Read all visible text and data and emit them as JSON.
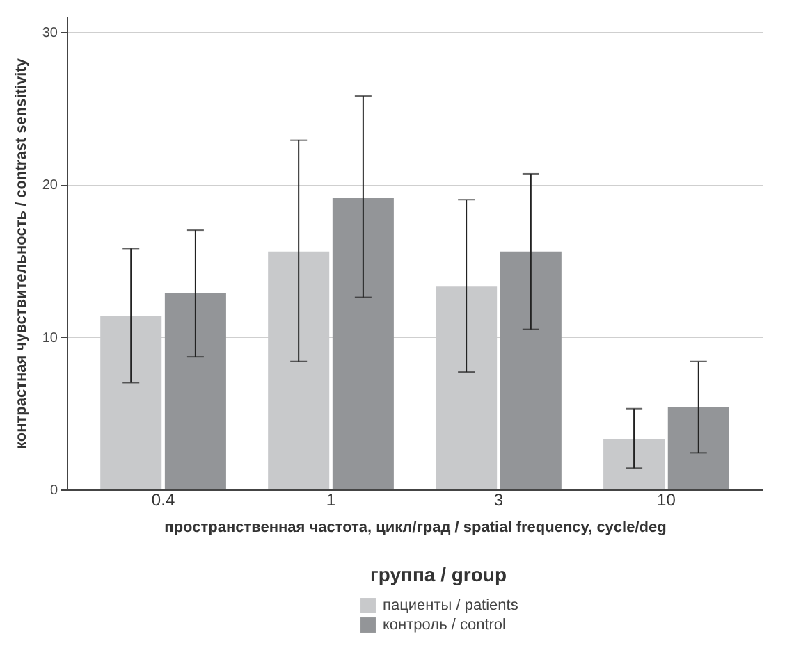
{
  "chart_data": {
    "type": "bar",
    "xlabel": "пространственная частота, цикл/град / spatial frequency, cycle/deg",
    "ylabel": "контрастная чувствительность / contrast sensitivity",
    "legend_title": "группа / group",
    "categories": [
      "0.4",
      "1",
      "3",
      "10"
    ],
    "series": [
      {
        "name": "пациенты / patients",
        "color": "#c8c9cb",
        "values": [
          11.4,
          15.6,
          13.3,
          3.3
        ],
        "errors": [
          [
            7.0,
            15.8
          ],
          [
            8.4,
            22.9
          ],
          [
            7.7,
            19.0
          ],
          [
            1.4,
            5.3
          ]
        ]
      },
      {
        "name": "контроль / control",
        "color": "#939598",
        "values": [
          12.9,
          19.1,
          15.6,
          5.4
        ],
        "errors": [
          [
            8.7,
            17.0
          ],
          [
            12.6,
            25.8
          ],
          [
            10.5,
            20.7
          ],
          [
            2.4,
            8.4
          ]
        ]
      }
    ],
    "ylim": [
      0,
      31
    ],
    "yticks": [
      0,
      10,
      20,
      30
    ],
    "grid": "y",
    "legend": "bottom"
  }
}
